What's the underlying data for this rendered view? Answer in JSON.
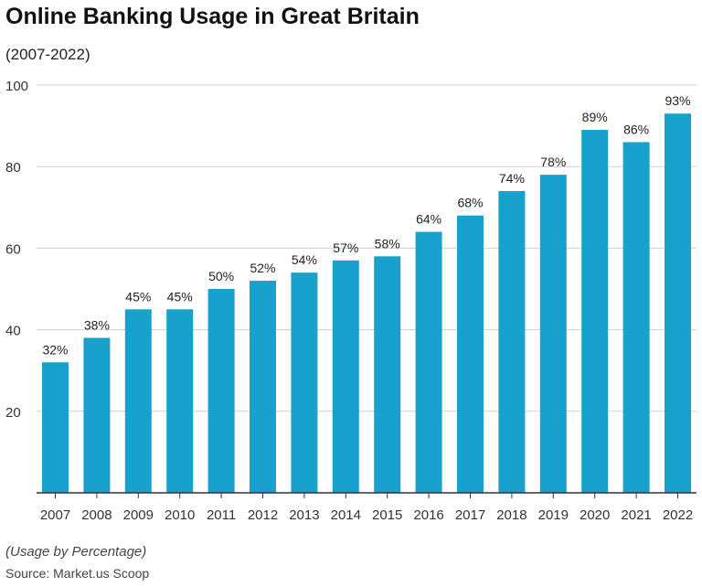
{
  "chart_data": {
    "type": "bar",
    "title": "Online Banking Usage in Great Britain",
    "subtitle": "(2007-2022)",
    "categories": [
      "2007",
      "2008",
      "2009",
      "2010",
      "2011",
      "2012",
      "2013",
      "2014",
      "2015",
      "2016",
      "2017",
      "2018",
      "2019",
      "2020",
      "2021",
      "2022"
    ],
    "values": [
      32,
      38,
      45,
      45,
      50,
      52,
      54,
      57,
      58,
      64,
      68,
      74,
      78,
      89,
      86,
      93
    ],
    "data_labels": [
      "32%",
      "38%",
      "45%",
      "45%",
      "50%",
      "52%",
      "54%",
      "57%",
      "58%",
      "64%",
      "68%",
      "74%",
      "78%",
      "89%",
      "86%",
      "93%"
    ],
    "yticks": [
      20,
      40,
      60,
      80,
      100
    ],
    "ylim": [
      0,
      100
    ],
    "grid": true,
    "bar_color": "#18a1cd",
    "note": "(Usage by Percentage)",
    "source": "Source: Market.us Scoop"
  }
}
